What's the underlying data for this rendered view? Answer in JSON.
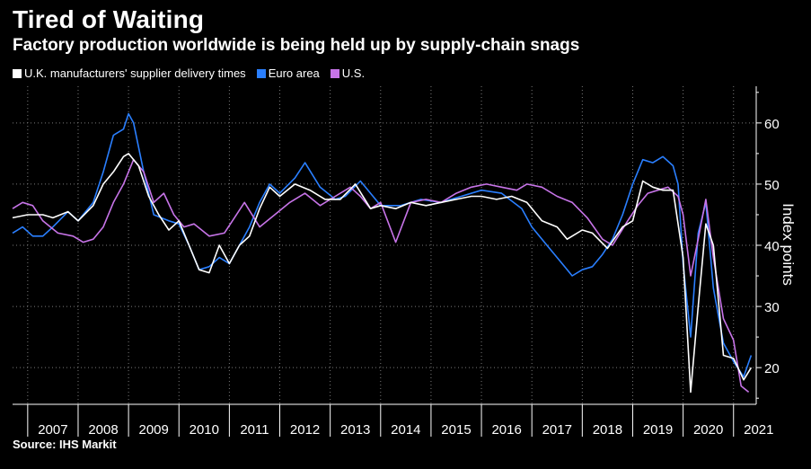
{
  "title": "Tired of Waiting",
  "subtitle": "Factory production worldwide is being held up by supply-chain snags",
  "source": "Source: IHS Markit",
  "colors": {
    "uk": "#ffffff",
    "euro": "#2a7fff",
    "us": "#c774e8",
    "axis": "#ffffff"
  },
  "chart_data": {
    "type": "line",
    "title": "Tired of Waiting",
    "subtitle": "Factory production worldwide is being held up by supply-chain snags",
    "ylabel": "Index points",
    "xlabel": "",
    "ylim": [
      14,
      66
    ],
    "yticks": [
      20,
      30,
      40,
      50,
      60
    ],
    "xlim": [
      2006.7,
      2021.45
    ],
    "years": [
      "2007",
      "2008",
      "2009",
      "2010",
      "2011",
      "2012",
      "2013",
      "2014",
      "2015",
      "2016",
      "2017",
      "2018",
      "2019",
      "2020",
      "2021"
    ],
    "grid": true,
    "legend_position": "top-left",
    "series": [
      {
        "name": "U.K. manufacturers' supplier delivery times",
        "key": "uk",
        "color": "#ffffff",
        "x": [
          2006.7,
          2007.0,
          2007.3,
          2007.5,
          2007.8,
          2008.0,
          2008.3,
          2008.5,
          2008.7,
          2008.9,
          2009.0,
          2009.2,
          2009.4,
          2009.6,
          2009.8,
          2010.0,
          2010.2,
          2010.4,
          2010.6,
          2010.8,
          2011.0,
          2011.2,
          2011.4,
          2011.6,
          2011.8,
          2012.0,
          2012.3,
          2012.6,
          2012.9,
          2013.2,
          2013.5,
          2013.8,
          2014.0,
          2014.3,
          2014.6,
          2014.9,
          2015.2,
          2015.5,
          2015.8,
          2016.0,
          2016.3,
          2016.6,
          2016.9,
          2017.2,
          2017.5,
          2017.7,
          2018.0,
          2018.2,
          2018.5,
          2018.8,
          2019.0,
          2019.2,
          2019.4,
          2019.6,
          2019.8,
          2020.0,
          2020.15,
          2020.3,
          2020.45,
          2020.6,
          2020.8,
          2021.0,
          2021.2,
          2021.35
        ],
        "values": [
          44.5,
          45,
          45,
          44.5,
          45.5,
          44,
          46.5,
          50,
          52,
          54.5,
          55,
          53,
          48,
          45,
          42.5,
          44,
          40,
          36,
          35.5,
          40,
          37,
          40,
          41.5,
          46,
          49.5,
          48,
          50,
          49,
          47.5,
          47.5,
          50,
          46,
          46.5,
          46,
          47,
          46.5,
          47,
          47.5,
          48,
          48,
          47.5,
          48,
          47,
          44,
          43,
          41,
          42.5,
          42,
          39.5,
          43,
          44,
          50.5,
          49.5,
          49,
          49,
          38,
          16,
          30,
          43.5,
          40,
          22,
          21.5,
          18,
          20
        ]
      },
      {
        "name": "Euro area",
        "key": "euro",
        "color": "#2a7fff",
        "x": [
          2006.7,
          2006.9,
          2007.1,
          2007.3,
          2007.5,
          2007.8,
          2008.0,
          2008.3,
          2008.5,
          2008.7,
          2008.9,
          2009.0,
          2009.1,
          2009.3,
          2009.5,
          2009.8,
          2010.0,
          2010.2,
          2010.4,
          2010.6,
          2010.8,
          2011.0,
          2011.2,
          2011.4,
          2011.6,
          2011.8,
          2012.0,
          2012.3,
          2012.5,
          2012.8,
          2013.1,
          2013.3,
          2013.6,
          2014.0,
          2014.4,
          2014.8,
          2015.2,
          2015.6,
          2016.0,
          2016.4,
          2016.8,
          2017.0,
          2017.3,
          2017.6,
          2017.8,
          2018.0,
          2018.2,
          2018.4,
          2018.6,
          2018.8,
          2019.0,
          2019.2,
          2019.4,
          2019.6,
          2019.8,
          2019.9,
          2020.0,
          2020.15,
          2020.3,
          2020.45,
          2020.6,
          2020.8,
          2021.0,
          2021.2,
          2021.35
        ],
        "values": [
          42,
          43,
          41.5,
          41.5,
          43,
          45.5,
          44,
          47,
          52,
          58,
          59,
          61.5,
          60,
          52,
          45,
          44,
          43.5,
          40,
          36,
          36.5,
          38,
          37,
          40,
          43,
          47,
          50,
          48.5,
          51,
          53.5,
          49.5,
          47.5,
          48,
          50.5,
          46.5,
          46.5,
          47.5,
          47,
          48,
          49,
          48.5,
          46,
          43,
          40,
          37,
          35,
          36,
          36.5,
          38.5,
          41,
          45,
          50,
          54,
          53.5,
          54.5,
          53,
          50,
          37,
          25,
          42,
          47,
          33,
          24,
          21,
          18.5,
          22
        ]
      },
      {
        "name": "U.S.",
        "key": "us",
        "color": "#c774e8",
        "x": [
          2006.7,
          2006.9,
          2007.1,
          2007.3,
          2007.6,
          2007.9,
          2008.1,
          2008.3,
          2008.5,
          2008.7,
          2008.9,
          2009.1,
          2009.3,
          2009.5,
          2009.7,
          2009.9,
          2010.1,
          2010.3,
          2010.6,
          2010.9,
          2011.1,
          2011.3,
          2011.6,
          2011.9,
          2012.2,
          2012.5,
          2012.8,
          2013.1,
          2013.4,
          2013.6,
          2013.8,
          2014.0,
          2014.3,
          2014.6,
          2014.9,
          2015.2,
          2015.5,
          2015.8,
          2016.1,
          2016.4,
          2016.7,
          2016.9,
          2017.2,
          2017.5,
          2017.8,
          2018.1,
          2018.4,
          2018.6,
          2018.9,
          2019.1,
          2019.3,
          2019.5,
          2019.7,
          2019.9,
          2020.0,
          2020.15,
          2020.3,
          2020.45,
          2020.6,
          2020.8,
          2021.0,
          2021.15,
          2021.3
        ],
        "values": [
          46,
          47,
          46.5,
          44,
          42,
          41.5,
          40.5,
          41,
          43,
          47,
          50,
          54,
          52,
          47,
          48.5,
          45,
          43,
          43.5,
          41.5,
          42,
          44.5,
          47,
          43,
          45,
          47,
          48.5,
          46.5,
          48,
          49.5,
          48,
          46,
          47,
          40.5,
          47,
          47.5,
          47,
          48.5,
          49.5,
          50,
          49.5,
          49,
          50,
          49.5,
          48,
          47,
          44.5,
          41,
          40,
          44,
          46.5,
          48.5,
          49,
          49.5,
          48,
          45,
          35,
          41,
          47.5,
          38,
          28,
          24.5,
          17,
          16
        ]
      }
    ]
  }
}
